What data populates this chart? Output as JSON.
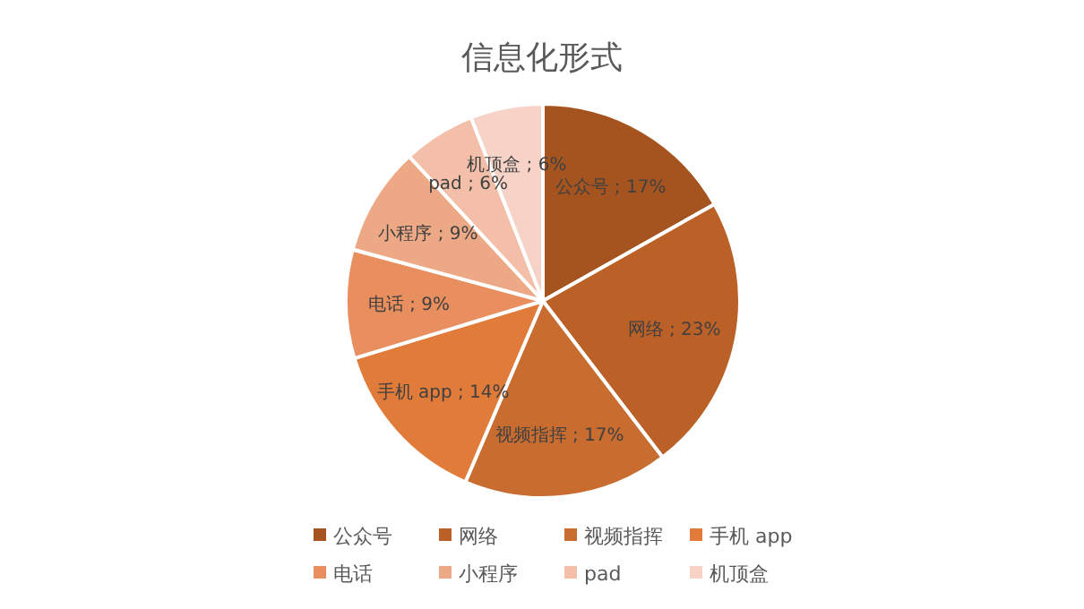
{
  "chart_data": {
    "type": "pie",
    "title": "信息化形式",
    "categories": [
      "公众号",
      "网络",
      "视频指挥",
      "手机 app",
      "电话",
      "小程序",
      "pad",
      "机顶盒"
    ],
    "values": [
      17,
      23,
      17,
      14,
      9,
      9,
      6,
      6
    ],
    "colors": [
      "#a5541f",
      "#bb6127",
      "#c96c30",
      "#e07b39",
      "#e98e5e",
      "#eda985",
      "#f3bfa8",
      "#f7d3c7"
    ],
    "value_labels": [
      "公众号 ; 17%",
      "网络 ; 23%",
      "视频指挥 ; 17%",
      "手机 app ; 14%",
      "电话 ; 9%",
      "小程序 ; 9%",
      "pad ; 6%",
      "机顶盒 ; 6%"
    ],
    "legend": "bottom"
  }
}
